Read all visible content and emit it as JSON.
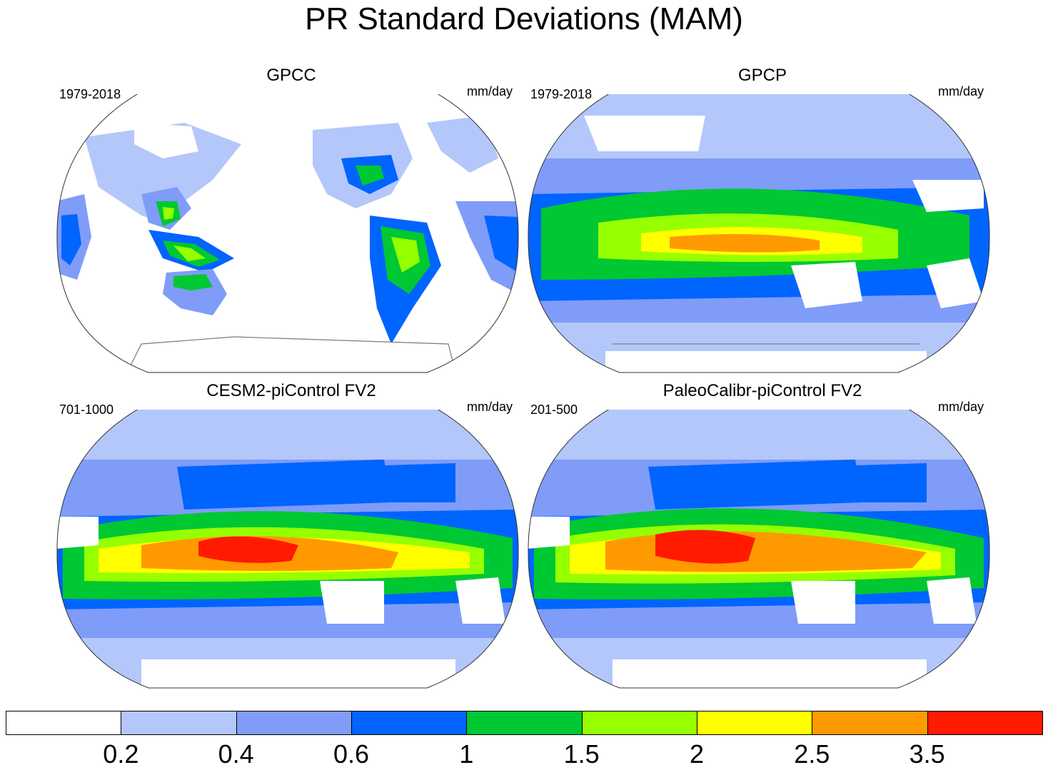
{
  "title": "PR Standard Deviations (MAM)",
  "panels": [
    {
      "name": "GPCC",
      "period": "1979-2018",
      "units": "mm/day"
    },
    {
      "name": "GPCP",
      "period": "1979-2018",
      "units": "mm/day"
    },
    {
      "name": "CESM2-piControl FV2",
      "period": "701-1000",
      "units": "mm/day"
    },
    {
      "name": "PaleoCalibr-piControl FV2",
      "period": "201-500",
      "units": "mm/day"
    }
  ],
  "colorbar": {
    "labels": [
      "0.2",
      "0.4",
      "0.6",
      "1",
      "1.5",
      "2",
      "2.5",
      "3.5"
    ],
    "colors": [
      "#ffffff",
      "#b4c7fa",
      "#7f9cf8",
      "#0064ff",
      "#00c832",
      "#96ff00",
      "#ffff00",
      "#ff9900",
      "#ff1a00"
    ]
  },
  "palette": {
    "ocean_white": "#ffffff",
    "c1": "#b4c7fa",
    "c2": "#7f9cf8",
    "c3": "#0064ff",
    "c4": "#00c832",
    "c5": "#96ff00",
    "c6": "#ffff00",
    "c7": "#ff9900",
    "c8": "#ff1a00",
    "coast": "#7a7a7a"
  }
}
